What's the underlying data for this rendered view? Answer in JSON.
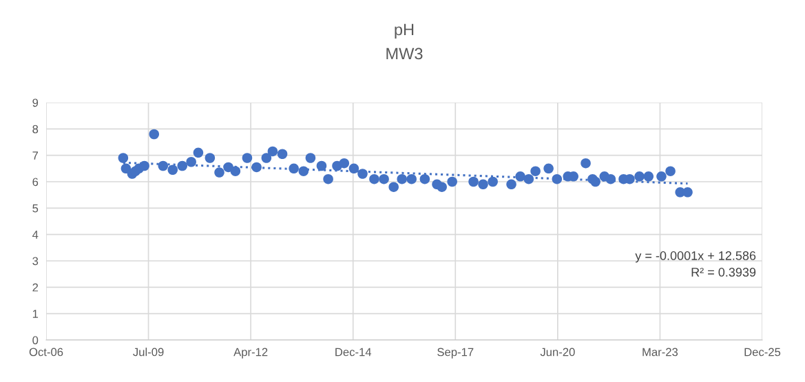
{
  "chart_data": {
    "type": "scatter",
    "title": "pH",
    "subtitle": "MW3",
    "series": [
      {
        "color": "#4472c4",
        "marker": "circle",
        "x": [
          "2008-11-01",
          "2008-11-28",
          "2009-01-28",
          "2009-03-01",
          "2009-04-04",
          "2009-05-27",
          "2009-08-30",
          "2009-11-26",
          "2010-02-28",
          "2010-06-02",
          "2010-08-28",
          "2010-11-05",
          "2011-02-27",
          "2011-05-30",
          "2011-08-26",
          "2011-11-03",
          "2012-02-26",
          "2012-05-28",
          "2012-09-01",
          "2012-11-01",
          "2013-02-04",
          "2013-05-27",
          "2013-08-30",
          "2013-11-06",
          "2014-02-22",
          "2014-04-28",
          "2014-07-24",
          "2014-10-01",
          "2015-01-04",
          "2015-03-30",
          "2015-07-22",
          "2015-10-25",
          "2016-01-28",
          "2016-04-18",
          "2016-07-21",
          "2016-11-27",
          "2017-03-26",
          "2017-05-13",
          "2017-08-22",
          "2018-03-18",
          "2018-06-20",
          "2018-09-23",
          "2019-03-23",
          "2019-06-19",
          "2019-09-09",
          "2019-11-14",
          "2020-03-21",
          "2020-06-11",
          "2020-09-26",
          "2020-11-19",
          "2021-03-19",
          "2021-05-25",
          "2021-06-22",
          "2021-09-18",
          "2021-11-18",
          "2022-03-24",
          "2022-05-23",
          "2022-08-26",
          "2022-11-23",
          "2023-03-29",
          "2023-06-25",
          "2023-09-28",
          "2023-12-10"
        ],
        "values": [
          6.9,
          6.5,
          6.3,
          6.4,
          6.5,
          6.6,
          7.8,
          6.6,
          6.45,
          6.6,
          6.75,
          7.1,
          6.9,
          6.35,
          6.55,
          6.4,
          6.9,
          6.55,
          6.9,
          7.15,
          7.05,
          6.5,
          6.4,
          6.9,
          6.6,
          6.1,
          6.6,
          6.7,
          6.5,
          6.3,
          6.1,
          6.1,
          5.8,
          6.1,
          6.1,
          6.1,
          5.9,
          5.8,
          6.0,
          6.0,
          5.9,
          6.0,
          5.9,
          6.2,
          6.1,
          6.4,
          6.5,
          6.1,
          6.2,
          6.2,
          6.7,
          6.1,
          6.0,
          6.2,
          6.1,
          6.1,
          6.1,
          6.2,
          6.2,
          6.2,
          6.4,
          5.6,
          5.6
        ]
      },
      {
        "type": "line",
        "color": "#4472c4",
        "line_style": "dotted",
        "marker": "none",
        "x": [
          "2008-11-01",
          "2023-12-10"
        ],
        "values": [
          6.72,
          5.93
        ]
      }
    ],
    "xlim": [
      "2006-10-10",
      "2025-12-09"
    ],
    "xticks": [
      {
        "value": "2006-10-10",
        "label": "Oct-06"
      },
      {
        "value": "2009-07-06",
        "label": "Jul-09"
      },
      {
        "value": "2012-04-01",
        "label": "Apr-12"
      },
      {
        "value": "2014-12-27",
        "label": "Dec-14"
      },
      {
        "value": "2017-09-22",
        "label": "Sep-17"
      },
      {
        "value": "2020-06-18",
        "label": "Jun-20"
      },
      {
        "value": "2023-03-15",
        "label": "Mar-23"
      },
      {
        "value": "2025-12-09",
        "label": "Dec-25"
      }
    ],
    "ylim": [
      0,
      9
    ],
    "yticks": [
      0,
      1,
      2,
      3,
      4,
      5,
      6,
      7,
      8,
      9
    ],
    "grid": true,
    "annotations": [
      "y = -0.0001x + 12.586",
      "R² = 0.3939"
    ]
  }
}
